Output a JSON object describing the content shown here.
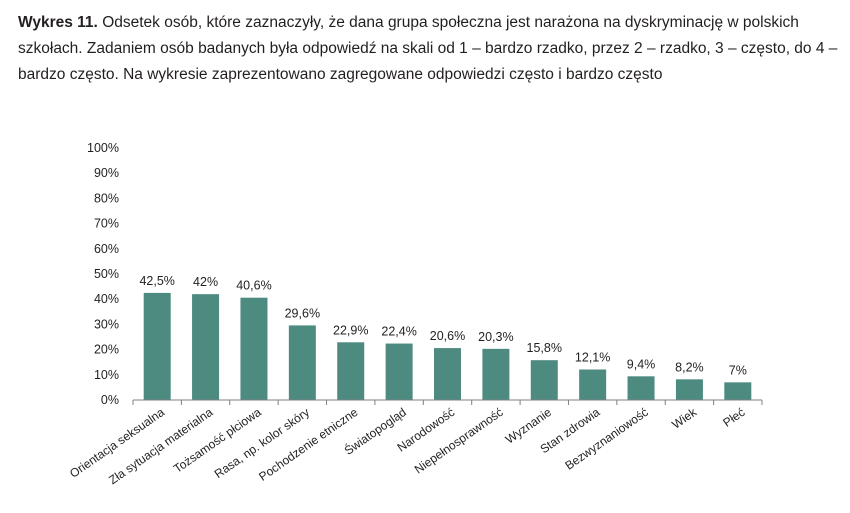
{
  "caption": {
    "label": "Wykres 11.",
    "text": "Odsetek osób, które zaznaczyły, że dana grupa społeczna jest narażona na dyskryminację w polskich szkołach. Zadaniem osób badanych była odpowiedź na skali od 1 – bardzo rzadko, przez 2 – rzadko, 3 – często, do 4 – bardzo często. Na wykresie zaprezentowano zagregowane odpowiedzi często i bardzo często"
  },
  "chart_data": {
    "type": "bar",
    "title": "",
    "xlabel": "",
    "ylabel": "",
    "ylim": [
      0,
      100
    ],
    "y_ticks": [
      "0%",
      "10%",
      "20%",
      "30%",
      "40%",
      "50%",
      "60%",
      "70%",
      "80%",
      "90%",
      "100%"
    ],
    "categories": [
      "Orientacja seksualna",
      "Zła sytuacja materialna",
      "Tożsamość płciowa",
      "Rasa, np. kolor skóry",
      "Pochodzenie etniczne",
      "Światopogląd",
      "Narodowość",
      "Niepełnosprawność",
      "Wyznanie",
      "Stan zdrowia",
      "Bezwyznaniowość",
      "Wiek",
      "Płeć"
    ],
    "values": [
      42.5,
      42,
      40.6,
      29.6,
      22.9,
      22.4,
      20.6,
      20.3,
      15.8,
      12.1,
      9.4,
      8.2,
      7
    ],
    "data_labels": [
      "42,5%",
      "42%",
      "40,6%",
      "29,6%",
      "22,9%",
      "22,4%",
      "20,6%",
      "20,3%",
      "15,8%",
      "12,1%",
      "9,4%",
      "8,2%",
      "7%"
    ],
    "bar_color": "#4d8a80",
    "axis_color": "#808080"
  }
}
